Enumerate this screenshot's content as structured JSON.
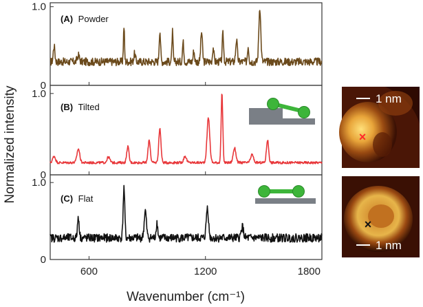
{
  "chart_data": {
    "type": "line",
    "xlabel": "Wavenumber (cm⁻¹)",
    "ylabel": "Normalized intensity",
    "xlim": [
      400,
      1800
    ],
    "xticks": [
      600,
      1200,
      1800
    ],
    "panels": [
      {
        "id": "A",
        "label_letter": "(A)",
        "label_text": "Powder",
        "color": "#6b4a1c",
        "ylim": [
          0,
          1.05
        ],
        "yticks": [
          {
            "v": 0,
            "t": "0"
          },
          {
            "v": 1.0,
            "t": "1.0"
          }
        ],
        "baseline": 0.3,
        "noise": 0.05,
        "peaks": [
          {
            "x": 420,
            "h": 0.2,
            "w": 6
          },
          {
            "x": 545,
            "h": 0.08,
            "w": 8
          },
          {
            "x": 780,
            "h": 0.45,
            "w": 4
          },
          {
            "x": 835,
            "h": 0.1,
            "w": 6
          },
          {
            "x": 965,
            "h": 0.4,
            "w": 5
          },
          {
            "x": 1030,
            "h": 0.38,
            "w": 4
          },
          {
            "x": 1085,
            "h": 0.25,
            "w": 5
          },
          {
            "x": 1140,
            "h": 0.14,
            "w": 5
          },
          {
            "x": 1180,
            "h": 0.38,
            "w": 6
          },
          {
            "x": 1240,
            "h": 0.18,
            "w": 5
          },
          {
            "x": 1290,
            "h": 0.35,
            "w": 5
          },
          {
            "x": 1360,
            "h": 0.28,
            "w": 6
          },
          {
            "x": 1420,
            "h": 0.2,
            "w": 5
          },
          {
            "x": 1480,
            "h": 0.7,
            "w": 7
          }
        ]
      },
      {
        "id": "B",
        "label_letter": "(B)",
        "label_text": "Tilted",
        "color": "#e8373a",
        "ylim": [
          0,
          1.1
        ],
        "yticks": [
          {
            "v": 0,
            "t": "0"
          },
          {
            "v": 1.0,
            "t": "1.0"
          }
        ],
        "baseline": 0.15,
        "noise": 0.015,
        "peaks": [
          {
            "x": 420,
            "h": 0.08,
            "w": 10
          },
          {
            "x": 545,
            "h": 0.17,
            "w": 10
          },
          {
            "x": 700,
            "h": 0.07,
            "w": 10
          },
          {
            "x": 800,
            "h": 0.2,
            "w": 8
          },
          {
            "x": 910,
            "h": 0.28,
            "w": 8
          },
          {
            "x": 965,
            "h": 0.42,
            "w": 8
          },
          {
            "x": 1095,
            "h": 0.08,
            "w": 10
          },
          {
            "x": 1215,
            "h": 0.55,
            "w": 10
          },
          {
            "x": 1285,
            "h": 0.85,
            "w": 6
          },
          {
            "x": 1350,
            "h": 0.18,
            "w": 10
          },
          {
            "x": 1440,
            "h": 0.1,
            "w": 10
          },
          {
            "x": 1520,
            "h": 0.28,
            "w": 8
          }
        ]
      },
      {
        "id": "C",
        "label_letter": "(C)",
        "label_text": "Flat",
        "color": "#111111",
        "ylim": [
          0,
          1.1
        ],
        "yticks": [
          {
            "v": 0,
            "t": "0"
          },
          {
            "v": 1.0,
            "t": "1.0"
          }
        ],
        "baseline": 0.28,
        "noise": 0.055,
        "peaks": [
          {
            "x": 545,
            "h": 0.28,
            "w": 6
          },
          {
            "x": 780,
            "h": 0.65,
            "w": 6
          },
          {
            "x": 890,
            "h": 0.35,
            "w": 8
          },
          {
            "x": 950,
            "h": 0.2,
            "w": 6
          },
          {
            "x": 1210,
            "h": 0.4,
            "w": 8
          },
          {
            "x": 1390,
            "h": 0.15,
            "w": 8
          }
        ]
      }
    ]
  },
  "images": [
    {
      "id": "stm-tilted",
      "scale_text": "1 nm",
      "marker": "×",
      "marker_color": "#ff2a2a"
    },
    {
      "id": "stm-flat",
      "scale_text": "1 nm",
      "marker": "×",
      "marker_color": "#111111"
    }
  ],
  "inset_colors": {
    "molecule": "#3db53a",
    "substrate": "#7a7f86"
  }
}
